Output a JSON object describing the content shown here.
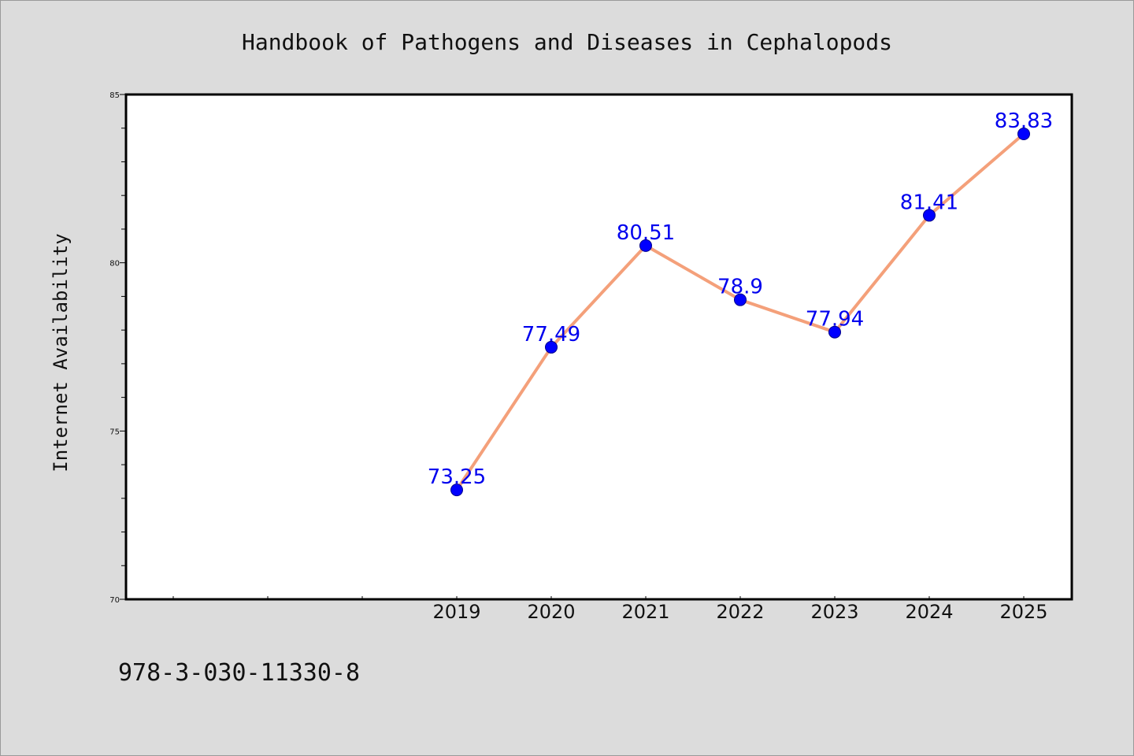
{
  "chart_data": {
    "type": "line",
    "title": "Handbook of Pathogens and Diseases in Cephalopods",
    "xlabel": "",
    "ylabel": "Internet Availability",
    "categories": [
      "2019",
      "2020",
      "2021",
      "2022",
      "2023",
      "2024",
      "2025"
    ],
    "values": [
      73.25,
      77.49,
      80.51,
      78.9,
      77.94,
      81.41,
      83.83
    ],
    "data_labels": [
      "73.25",
      "77.49",
      "80.51",
      "78.9",
      "77.94",
      "81.41",
      "83.83"
    ],
    "ylim": [
      70,
      85
    ],
    "yticks": [
      "70",
      "75",
      "80",
      "85"
    ],
    "grid": false,
    "line_color": "#f4a07a",
    "marker_color": "#0000ff",
    "label_color": "#0000ee"
  },
  "footer": {
    "isbn": "978-3-030-11330-8"
  }
}
